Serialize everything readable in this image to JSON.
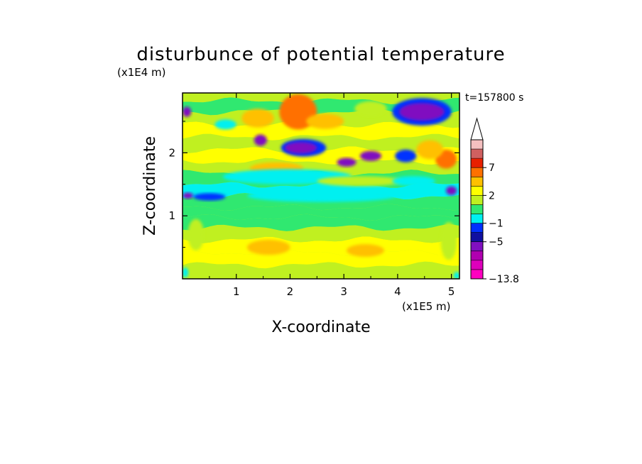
{
  "chart_data": {
    "type": "heatmap",
    "title": "disturbunce of potential temperature",
    "xlabel": "X-coordinate",
    "ylabel": "Z-coordinate",
    "x_unit": "(x1E5 m)",
    "y_unit": "(x1E4 m)",
    "time_label": "t=157800 s",
    "xlim": [
      0,
      5.15
    ],
    "ylim": [
      0,
      2.95
    ],
    "x_ticks": [
      1,
      2,
      3,
      4,
      5
    ],
    "y_ticks": [
      1,
      2
    ],
    "x_tick_labels": [
      "1",
      "2",
      "3",
      "4",
      "5"
    ],
    "y_tick_labels": [
      "1",
      "2"
    ],
    "colorbar": {
      "levels": [
        -13.8,
        -11,
        -9,
        -7,
        -5,
        -3,
        -1,
        0,
        1,
        2,
        3.5,
        5,
        7,
        9,
        11
      ],
      "colors": [
        "#ff00c0",
        "#dd00bb",
        "#b000b0",
        "#8010c0",
        "#1010a0",
        "#0030ff",
        "#00f0f0",
        "#30e870",
        "#c0f020",
        "#ffff00",
        "#ffc000",
        "#ff7000",
        "#e82000",
        "#d06060",
        "#f5c0c0"
      ],
      "labels": [
        "7",
        "2",
        "−1",
        "−5",
        "−13.8"
      ],
      "label_values": [
        7,
        2,
        -1,
        -5,
        -13.8
      ],
      "extend": "max"
    },
    "bands": [
      {
        "z": 0.12,
        "value": 1.5
      },
      {
        "z": 0.32,
        "value": 3.0
      },
      {
        "z": 0.52,
        "value": 3.0
      },
      {
        "z": 0.72,
        "value": 1.5
      },
      {
        "z": 0.9,
        "value": 0.5
      },
      {
        "z": 1.05,
        "value": 0.5
      },
      {
        "z": 1.22,
        "value": 0.5
      },
      {
        "z": 1.4,
        "value": -0.5
      },
      {
        "z": 1.58,
        "value": 0.5
      },
      {
        "z": 1.78,
        "value": 1.5
      },
      {
        "z": 1.95,
        "value": 3.0
      },
      {
        "z": 2.15,
        "value": 1.5
      },
      {
        "z": 2.35,
        "value": 3.0
      },
      {
        "z": 2.55,
        "value": 1.5
      },
      {
        "z": 2.75,
        "value": 0.5
      },
      {
        "z": 2.9,
        "value": 1.5
      }
    ],
    "blobs": [
      {
        "x": 2.15,
        "z": 2.65,
        "rx": 0.35,
        "rz": 0.28,
        "value": 5.5
      },
      {
        "x": 1.4,
        "z": 2.55,
        "rx": 0.3,
        "rz": 0.15,
        "value": 4.0
      },
      {
        "x": 2.65,
        "z": 2.5,
        "rx": 0.35,
        "rz": 0.12,
        "value": 4.0
      },
      {
        "x": 3.5,
        "z": 2.7,
        "rx": 0.3,
        "rz": 0.12,
        "value": 1.5
      },
      {
        "x": 4.45,
        "z": 2.65,
        "rx": 0.55,
        "rz": 0.22,
        "value": -2.0
      },
      {
        "x": 4.45,
        "z": 2.65,
        "rx": 0.42,
        "rz": 0.14,
        "value": -6.0
      },
      {
        "x": 0.08,
        "z": 2.65,
        "rx": 0.08,
        "rz": 0.08,
        "value": -6.0
      },
      {
        "x": 0.8,
        "z": 2.45,
        "rx": 0.2,
        "rz": 0.08,
        "value": -1.0
      },
      {
        "x": 2.25,
        "z": 2.08,
        "rx": 0.42,
        "rz": 0.14,
        "value": -2.0
      },
      {
        "x": 2.2,
        "z": 2.08,
        "rx": 0.3,
        "rz": 0.09,
        "value": -6.0
      },
      {
        "x": 1.45,
        "z": 2.2,
        "rx": 0.12,
        "rz": 0.09,
        "value": -6.0
      },
      {
        "x": 3.05,
        "z": 1.85,
        "rx": 0.18,
        "rz": 0.07,
        "value": -6.0
      },
      {
        "x": 3.5,
        "z": 1.95,
        "rx": 0.2,
        "rz": 0.08,
        "value": -6.0
      },
      {
        "x": 4.15,
        "z": 1.95,
        "rx": 0.2,
        "rz": 0.1,
        "value": -2.0
      },
      {
        "x": 4.9,
        "z": 1.9,
        "rx": 0.2,
        "rz": 0.15,
        "value": 5.5
      },
      {
        "x": 4.6,
        "z": 2.05,
        "rx": 0.25,
        "rz": 0.15,
        "value": 4.0
      },
      {
        "x": 1.75,
        "z": 1.75,
        "rx": 0.5,
        "rz": 0.1,
        "value": 4.0
      },
      {
        "x": 1.95,
        "z": 1.62,
        "rx": 1.2,
        "rz": 0.12,
        "value": -0.5
      },
      {
        "x": 3.3,
        "z": 1.55,
        "rx": 0.8,
        "rz": 0.08,
        "value": 1.5
      },
      {
        "x": 4.3,
        "z": 1.55,
        "rx": 0.4,
        "rz": 0.08,
        "value": -0.5
      },
      {
        "x": 0.1,
        "z": 1.32,
        "rx": 0.1,
        "rz": 0.05,
        "value": -6.0
      },
      {
        "x": 0.5,
        "z": 1.3,
        "rx": 0.3,
        "rz": 0.06,
        "value": -2.0
      },
      {
        "x": 5.0,
        "z": 1.4,
        "rx": 0.1,
        "rz": 0.07,
        "value": -6.0
      },
      {
        "x": 2.6,
        "z": 1.32,
        "rx": 1.4,
        "rz": 0.1,
        "value": -0.5
      },
      {
        "x": 1.6,
        "z": 0.5,
        "rx": 0.4,
        "rz": 0.12,
        "value": 4.0
      },
      {
        "x": 3.4,
        "z": 0.45,
        "rx": 0.35,
        "rz": 0.1,
        "value": 4.0
      },
      {
        "x": 0.25,
        "z": 0.7,
        "rx": 0.15,
        "rz": 0.25,
        "value": 1.5
      },
      {
        "x": 4.95,
        "z": 0.6,
        "rx": 0.15,
        "rz": 0.3,
        "value": 1.5
      },
      {
        "x": 0.05,
        "z": 0.1,
        "rx": 0.06,
        "rz": 0.08,
        "value": -0.5
      },
      {
        "x": 5.1,
        "z": 0.05,
        "rx": 0.06,
        "rz": 0.06,
        "value": -0.5
      }
    ]
  }
}
